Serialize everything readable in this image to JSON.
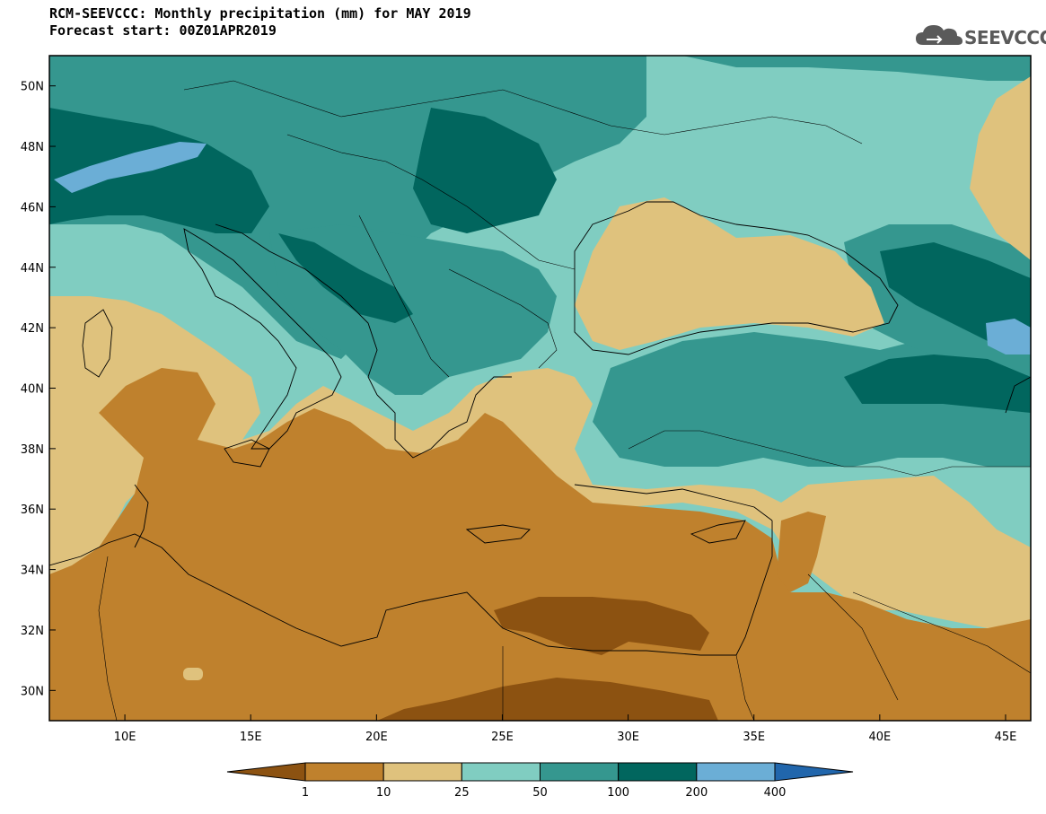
{
  "title": "RCM-SEEVCCC: Monthly precipitation (mm) for MAY 2019",
  "subtitle": "Forecast start: 00Z01APR2019",
  "logo_text": "SEEVCCC",
  "map": {
    "lon_range": [
      7,
      46
    ],
    "lat_range": [
      29,
      51
    ],
    "lon_ticks": [
      {
        "value": 10,
        "label": "10E"
      },
      {
        "value": 15,
        "label": "15E"
      },
      {
        "value": 20,
        "label": "20E"
      },
      {
        "value": 25,
        "label": "25E"
      },
      {
        "value": 30,
        "label": "30E"
      },
      {
        "value": 35,
        "label": "35E"
      },
      {
        "value": 40,
        "label": "40E"
      },
      {
        "value": 45,
        "label": "45E"
      }
    ],
    "lat_ticks": [
      {
        "value": 30,
        "label": "30N"
      },
      {
        "value": 32,
        "label": "32N"
      },
      {
        "value": 34,
        "label": "34N"
      },
      {
        "value": 36,
        "label": "36N"
      },
      {
        "value": 38,
        "label": "38N"
      },
      {
        "value": 40,
        "label": "40N"
      },
      {
        "value": 42,
        "label": "42N"
      },
      {
        "value": 44,
        "label": "44N"
      },
      {
        "value": 46,
        "label": "46N"
      },
      {
        "value": 48,
        "label": "48N"
      },
      {
        "value": 50,
        "label": "50N"
      }
    ]
  },
  "colorbar": {
    "levels": [
      "1",
      "10",
      "25",
      "50",
      "100",
      "200",
      "400"
    ],
    "colors": [
      "#8c5211",
      "#bf812d",
      "#dfc27d",
      "#80cdc1",
      "#35978f",
      "#01665e",
      "#6baed6",
      "#2166ac"
    ]
  }
}
